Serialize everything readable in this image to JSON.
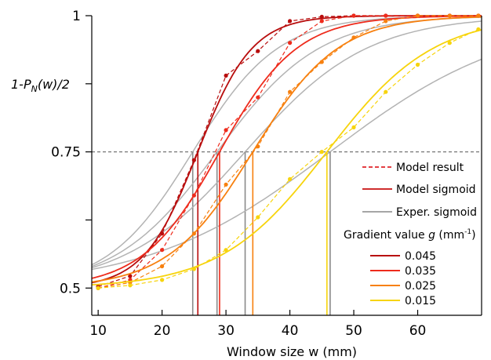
{
  "chart_data": {
    "type": "line",
    "xlabel": "Window size w (mm)",
    "ylabel": "1-PN(w)/2",
    "xlim": [
      9,
      70
    ],
    "ylim": [
      0.45,
      1.0
    ],
    "x_ticks": [
      10,
      20,
      30,
      40,
      50,
      60
    ],
    "y_ticks": [
      {
        "value": 0.5,
        "label": "0.5"
      },
      {
        "value": 0.75,
        "label": "0.75"
      },
      {
        "value": 1.0,
        "label": "1"
      }
    ],
    "reference_line": {
      "y": 0.75
    },
    "legend": {
      "placement": "bottom-right",
      "style_entries": [
        {
          "label": "Model result",
          "style": "dashed",
          "color": "#e0252a"
        },
        {
          "label": "Model sigmoid",
          "style": "solid",
          "color": "#c81010"
        },
        {
          "label": "Exper. sigmoid",
          "style": "solid",
          "color": "#999999"
        }
      ],
      "group_title": "Gradient value g (mm-1)",
      "group_entries": [
        {
          "label": "0.045",
          "color": "#b80d0d"
        },
        {
          "label": "0.035",
          "color": "#ee2b1c"
        },
        {
          "label": "0.025",
          "color": "#f7800f"
        },
        {
          "label": "0.015",
          "color": "#f7d40c"
        }
      ]
    },
    "series": [
      {
        "gradient": "0.045",
        "color": "#b80d0d",
        "model_result_x": [
          10,
          15,
          20,
          25,
          30,
          35,
          40,
          45,
          50,
          55,
          60,
          65,
          69.5
        ],
        "model_result_y": [
          0.503,
          0.522,
          0.6,
          0.735,
          0.89,
          0.935,
          0.99,
          0.998,
          1.0,
          1.0,
          1.0,
          1.0,
          1.0
        ],
        "model_sigmoid_threshold": 25.6,
        "model_sigmoid_slope": 0.235,
        "exper_sigmoid_threshold": 24.8,
        "exper_sigmoid_slope": 0.15
      },
      {
        "gradient": "0.035",
        "color": "#ee2b1c",
        "model_result_x": [
          10,
          15,
          20,
          25,
          30,
          35,
          40,
          45,
          50,
          55,
          60,
          65,
          69.5
        ],
        "model_result_y": [
          0.5,
          0.515,
          0.57,
          0.67,
          0.79,
          0.85,
          0.95,
          0.99,
          1.0,
          1.0,
          1.0,
          1.0,
          1.0
        ],
        "model_sigmoid_threshold": 29.0,
        "model_sigmoid_slope": 0.165,
        "exper_sigmoid_threshold": 28.6,
        "exper_sigmoid_slope": 0.125
      },
      {
        "gradient": "0.025",
        "color": "#f7800f",
        "model_result_x": [
          10,
          15,
          20,
          25,
          30,
          35,
          40,
          45,
          50,
          55,
          60,
          65,
          69.5
        ],
        "model_result_y": [
          0.5,
          0.51,
          0.54,
          0.6,
          0.69,
          0.76,
          0.86,
          0.915,
          0.96,
          0.99,
          1.0,
          1.0,
          1.0
        ],
        "model_sigmoid_threshold": 34.2,
        "model_sigmoid_slope": 0.15,
        "exper_sigmoid_threshold": 33.0,
        "exper_sigmoid_slope": 0.105
      },
      {
        "gradient": "0.015",
        "color": "#f7d40c",
        "model_result_x": [
          10,
          15,
          20,
          25,
          30,
          35,
          40,
          45,
          50,
          55,
          60,
          65,
          69.5
        ],
        "model_result_y": [
          0.5,
          0.505,
          0.515,
          0.535,
          0.57,
          0.63,
          0.7,
          0.75,
          0.795,
          0.86,
          0.91,
          0.95,
          0.975
        ],
        "model_sigmoid_threshold": 45.8,
        "model_sigmoid_slope": 0.12,
        "exper_sigmoid_threshold": 46.3,
        "exper_sigmoid_slope": 0.07
      }
    ]
  }
}
